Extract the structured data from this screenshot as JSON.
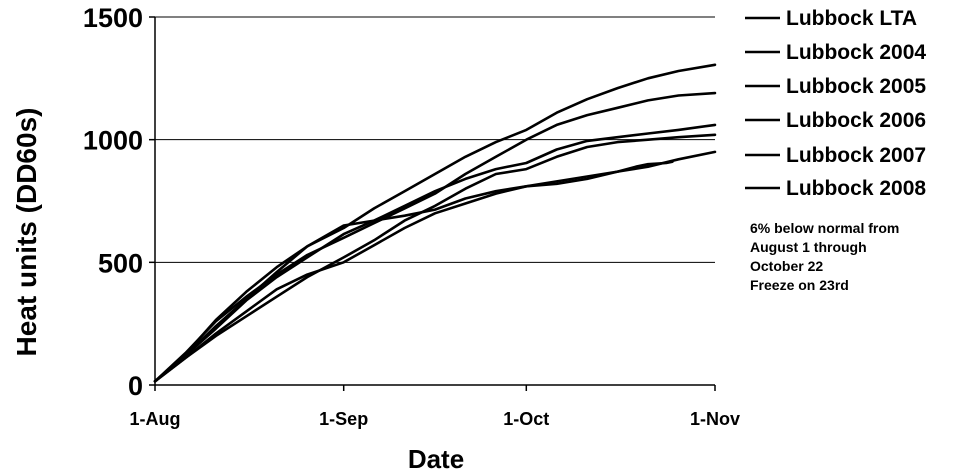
{
  "chart_data": {
    "type": "line",
    "title": "",
    "xlabel": "Date",
    "ylabel": "Heat units (DD60s)",
    "x_tick_labels": [
      "1-Aug",
      "1-Sep",
      "1-Oct",
      "1-Nov"
    ],
    "x_tick_days": [
      0,
      31,
      61,
      92
    ],
    "xlim": [
      0,
      92
    ],
    "yticks": [
      0,
      500,
      1000,
      1500
    ],
    "ylim": [
      0,
      1500
    ],
    "grid": "horizontal at 500, 1000, 1500",
    "legend_position": "right",
    "line_color": "#000000",
    "series": [
      {
        "name": "Lubbock LTA",
        "points": [
          [
            0,
            15
          ],
          [
            5,
            120
          ],
          [
            10,
            230
          ],
          [
            15,
            345
          ],
          [
            20,
            440
          ],
          [
            25,
            520
          ],
          [
            31,
            615
          ],
          [
            36,
            670
          ],
          [
            41,
            730
          ],
          [
            46,
            790
          ],
          [
            51,
            840
          ],
          [
            56,
            880
          ],
          [
            61,
            905
          ],
          [
            66,
            960
          ],
          [
            71,
            995
          ],
          [
            76,
            1010
          ],
          [
            81,
            1025
          ],
          [
            86,
            1040
          ],
          [
            92,
            1060
          ]
        ]
      },
      {
        "name": "Lubbock 2004",
        "points": [
          [
            0,
            15
          ],
          [
            5,
            125
          ],
          [
            10,
            265
          ],
          [
            15,
            380
          ],
          [
            20,
            480
          ],
          [
            25,
            565
          ],
          [
            31,
            640
          ],
          [
            36,
            720
          ],
          [
            41,
            790
          ],
          [
            46,
            860
          ],
          [
            51,
            930
          ],
          [
            56,
            990
          ],
          [
            61,
            1040
          ],
          [
            66,
            1110
          ],
          [
            71,
            1165
          ],
          [
            76,
            1210
          ],
          [
            81,
            1250
          ],
          [
            86,
            1280
          ],
          [
            92,
            1305
          ]
        ]
      },
      {
        "name": "Lubbock 2005",
        "points": [
          [
            0,
            15
          ],
          [
            5,
            130
          ],
          [
            10,
            260
          ],
          [
            15,
            360
          ],
          [
            20,
            450
          ],
          [
            25,
            530
          ],
          [
            31,
            600
          ],
          [
            36,
            660
          ],
          [
            41,
            720
          ],
          [
            46,
            780
          ],
          [
            51,
            860
          ],
          [
            56,
            930
          ],
          [
            61,
            1000
          ],
          [
            66,
            1060
          ],
          [
            71,
            1100
          ],
          [
            76,
            1130
          ],
          [
            81,
            1160
          ],
          [
            86,
            1180
          ],
          [
            92,
            1190
          ]
        ]
      },
      {
        "name": "Lubbock 2006",
        "points": [
          [
            0,
            15
          ],
          [
            5,
            110
          ],
          [
            10,
            200
          ],
          [
            15,
            280
          ],
          [
            20,
            360
          ],
          [
            25,
            440
          ],
          [
            31,
            520
          ],
          [
            36,
            590
          ],
          [
            41,
            670
          ],
          [
            46,
            730
          ],
          [
            51,
            800
          ],
          [
            56,
            860
          ],
          [
            61,
            880
          ],
          [
            66,
            930
          ],
          [
            71,
            970
          ],
          [
            76,
            990
          ],
          [
            81,
            1000
          ],
          [
            86,
            1010
          ],
          [
            92,
            1020
          ]
        ]
      },
      {
        "name": "Lubbock 2007",
        "points": [
          [
            0,
            15
          ],
          [
            5,
            120
          ],
          [
            10,
            240
          ],
          [
            15,
            350
          ],
          [
            20,
            460
          ],
          [
            25,
            565
          ],
          [
            31,
            650
          ],
          [
            36,
            670
          ],
          [
            41,
            690
          ],
          [
            46,
            715
          ],
          [
            51,
            760
          ],
          [
            56,
            790
          ],
          [
            61,
            810
          ],
          [
            66,
            820
          ],
          [
            71,
            840
          ],
          [
            76,
            870
          ],
          [
            79,
            890
          ],
          [
            81,
            900
          ],
          [
            84,
            905
          ],
          [
            85,
            910
          ]
        ]
      },
      {
        "name": "Lubbock 2008",
        "points": [
          [
            0,
            15
          ],
          [
            5,
            110
          ],
          [
            10,
            210
          ],
          [
            15,
            300
          ],
          [
            20,
            390
          ],
          [
            25,
            450
          ],
          [
            31,
            500
          ],
          [
            36,
            570
          ],
          [
            41,
            640
          ],
          [
            46,
            700
          ],
          [
            51,
            740
          ],
          [
            56,
            780
          ],
          [
            61,
            810
          ],
          [
            66,
            830
          ],
          [
            71,
            850
          ],
          [
            76,
            870
          ],
          [
            81,
            890
          ],
          [
            86,
            920
          ],
          [
            92,
            950
          ]
        ]
      }
    ],
    "annotation": [
      "6% below normal from",
      "August 1 through",
      "October 22",
      "Freeze on 23rd"
    ]
  }
}
